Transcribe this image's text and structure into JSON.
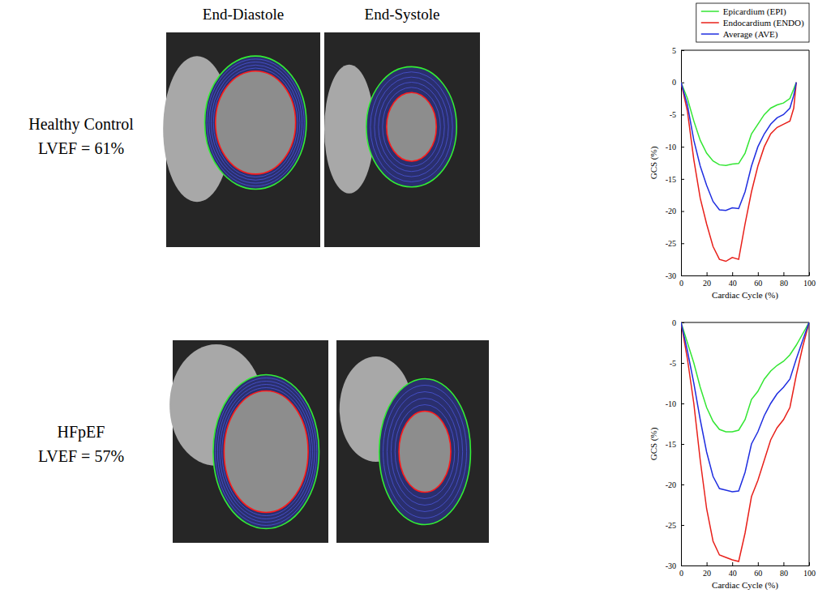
{
  "figure": {
    "columns": [
      "End-Diastole",
      "End-Systole"
    ],
    "rows": [
      {
        "label": "Healthy Control",
        "lvef": "LVEF = 61%"
      },
      {
        "label": "HFpEF",
        "lvef": "LVEF = 57%"
      }
    ]
  },
  "chart_data": [
    {
      "type": "line",
      "x_label": "Cardiac Cycle (%)",
      "y_label": "GCS (%)",
      "x": [
        0,
        5,
        10,
        15,
        20,
        25,
        30,
        35,
        40,
        45,
        50,
        55,
        60,
        65,
        70,
        75,
        80,
        85,
        88,
        90
      ],
      "series": [
        {
          "name": "Epicardium (EPI)",
          "color": "#33e633",
          "values": [
            0,
            -2.5,
            -6,
            -9,
            -11,
            -12.2,
            -12.8,
            -12.9,
            -12.7,
            -12.6,
            -11,
            -8,
            -6.5,
            -5,
            -4,
            -3.5,
            -3.2,
            -2.5,
            -1,
            0
          ]
        },
        {
          "name": "Endocardium (ENDO)",
          "color": "#e8201a",
          "values": [
            0,
            -4.5,
            -12,
            -18,
            -22,
            -25.5,
            -27.5,
            -27.8,
            -27.2,
            -27.5,
            -22,
            -17,
            -13,
            -10,
            -8,
            -7,
            -6.5,
            -6,
            -4,
            0
          ]
        },
        {
          "name": "Average (AVE)",
          "color": "#1f2ee0",
          "values": [
            0,
            -3.5,
            -9,
            -13,
            -16,
            -18.5,
            -19.8,
            -19.9,
            -19.5,
            -19.6,
            -17,
            -13,
            -10,
            -8,
            -6.5,
            -5.5,
            -5,
            -4,
            -2,
            0
          ]
        }
      ],
      "xlim": [
        0,
        100
      ],
      "xticks": [
        0,
        20,
        40,
        60,
        80,
        100
      ],
      "ylim": [
        -30,
        5
      ],
      "yticks": [
        -30,
        -25,
        -20,
        -15,
        -10,
        -5,
        0,
        5
      ],
      "legend": "top"
    },
    {
      "type": "line",
      "x_label": "Cardiac Cycle (%)",
      "y_label": "GCS (%)",
      "x": [
        0,
        5,
        10,
        15,
        20,
        25,
        30,
        35,
        40,
        45,
        50,
        55,
        60,
        65,
        70,
        75,
        80,
        85,
        90,
        95,
        100
      ],
      "series": [
        {
          "color": "#33e633",
          "values": [
            0,
            -2.5,
            -5,
            -8,
            -10.5,
            -12.2,
            -13.2,
            -13.5,
            -13.5,
            -13.3,
            -12,
            -9.5,
            -8.5,
            -7,
            -6,
            -5.3,
            -4.8,
            -4,
            -2.8,
            -1.4,
            0
          ]
        },
        {
          "color": "#e8201a",
          "values": [
            0,
            -4.5,
            -10,
            -17,
            -23,
            -27,
            -28.7,
            -29,
            -29.3,
            -29.5,
            -26,
            -21.5,
            -19.5,
            -17,
            -14.5,
            -13,
            -12,
            -10.5,
            -6.5,
            -3,
            0
          ]
        },
        {
          "color": "#1f2ee0",
          "values": [
            0,
            -3.5,
            -7.5,
            -12,
            -16,
            -19,
            -20.5,
            -20.7,
            -20.9,
            -20.8,
            -18.5,
            -15,
            -13.5,
            -11.5,
            -10,
            -8.8,
            -8,
            -7,
            -4.5,
            -2.2,
            0
          ]
        }
      ],
      "xlim": [
        0,
        100
      ],
      "xticks": [
        0,
        20,
        40,
        60,
        80,
        100
      ],
      "ylim": [
        -30,
        0
      ],
      "yticks": [
        -30,
        -25,
        -20,
        -15,
        -10,
        -5,
        0
      ]
    }
  ]
}
